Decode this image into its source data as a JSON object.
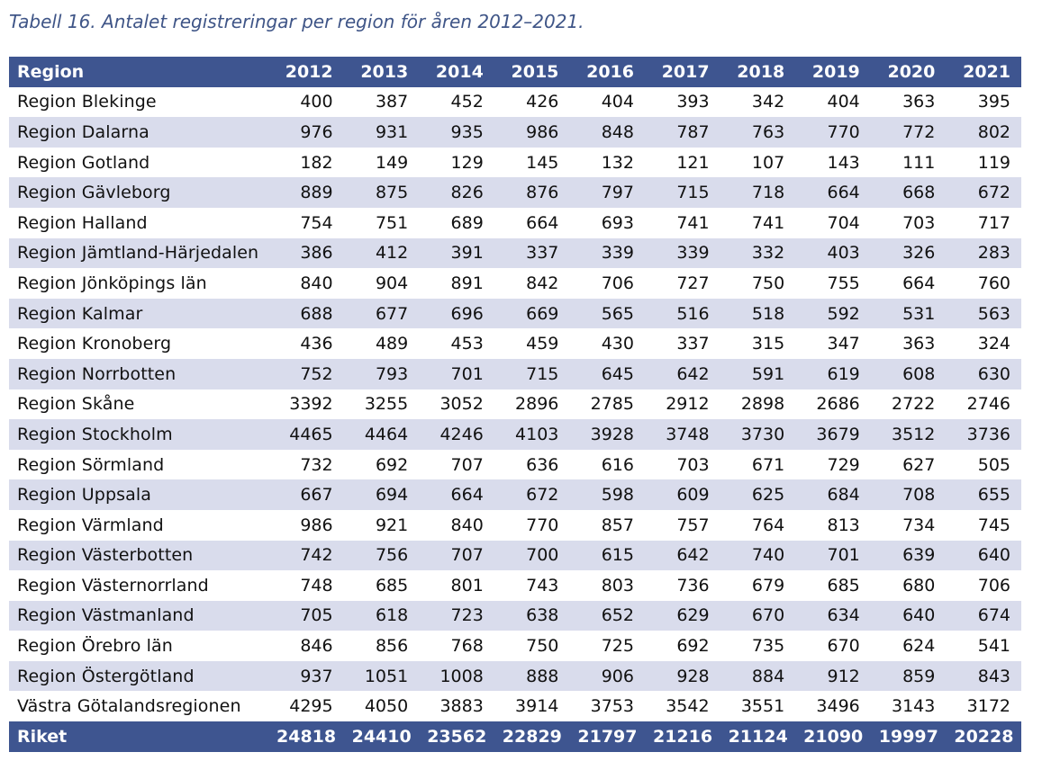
{
  "caption": "Tabell 16. Antalet registreringar per region för åren 2012–2021.",
  "header": {
    "region": "Region",
    "years": [
      "2012",
      "2013",
      "2014",
      "2015",
      "2016",
      "2017",
      "2018",
      "2019",
      "2020",
      "2021"
    ]
  },
  "rows": [
    {
      "region": "Region Blekinge",
      "values": [
        "400",
        "387",
        "452",
        "426",
        "404",
        "393",
        "342",
        "404",
        "363",
        "395"
      ]
    },
    {
      "region": "Region Dalarna",
      "values": [
        "976",
        "931",
        "935",
        "986",
        "848",
        "787",
        "763",
        "770",
        "772",
        "802"
      ]
    },
    {
      "region": "Region Gotland",
      "values": [
        "182",
        "149",
        "129",
        "145",
        "132",
        "121",
        "107",
        "143",
        "111",
        "119"
      ]
    },
    {
      "region": "Region Gävleborg",
      "values": [
        "889",
        "875",
        "826",
        "876",
        "797",
        "715",
        "718",
        "664",
        "668",
        "672"
      ]
    },
    {
      "region": "Region Halland",
      "values": [
        "754",
        "751",
        "689",
        "664",
        "693",
        "741",
        "741",
        "704",
        "703",
        "717"
      ]
    },
    {
      "region": "Region Jämtland-Härjedalen",
      "values": [
        "386",
        "412",
        "391",
        "337",
        "339",
        "339",
        "332",
        "403",
        "326",
        "283"
      ]
    },
    {
      "region": "Region Jönköpings län",
      "values": [
        "840",
        "904",
        "891",
        "842",
        "706",
        "727",
        "750",
        "755",
        "664",
        "760"
      ]
    },
    {
      "region": "Region Kalmar",
      "values": [
        "688",
        "677",
        "696",
        "669",
        "565",
        "516",
        "518",
        "592",
        "531",
        "563"
      ]
    },
    {
      "region": "Region Kronoberg",
      "values": [
        "436",
        "489",
        "453",
        "459",
        "430",
        "337",
        "315",
        "347",
        "363",
        "324"
      ]
    },
    {
      "region": "Region Norrbotten",
      "values": [
        "752",
        "793",
        "701",
        "715",
        "645",
        "642",
        "591",
        "619",
        "608",
        "630"
      ]
    },
    {
      "region": "Region Skåne",
      "values": [
        "3392",
        "3255",
        "3052",
        "2896",
        "2785",
        "2912",
        "2898",
        "2686",
        "2722",
        "2746"
      ]
    },
    {
      "region": "Region Stockholm",
      "values": [
        "4465",
        "4464",
        "4246",
        "4103",
        "3928",
        "3748",
        "3730",
        "3679",
        "3512",
        "3736"
      ]
    },
    {
      "region": "Region Sörmland",
      "values": [
        "732",
        "692",
        "707",
        "636",
        "616",
        "703",
        "671",
        "729",
        "627",
        "505"
      ]
    },
    {
      "region": "Region Uppsala",
      "values": [
        "667",
        "694",
        "664",
        "672",
        "598",
        "609",
        "625",
        "684",
        "708",
        "655"
      ]
    },
    {
      "region": "Region Värmland",
      "values": [
        "986",
        "921",
        "840",
        "770",
        "857",
        "757",
        "764",
        "813",
        "734",
        "745"
      ]
    },
    {
      "region": "Region Västerbotten",
      "values": [
        "742",
        "756",
        "707",
        "700",
        "615",
        "642",
        "740",
        "701",
        "639",
        "640"
      ]
    },
    {
      "region": "Region Västernorrland",
      "values": [
        "748",
        "685",
        "801",
        "743",
        "803",
        "736",
        "679",
        "685",
        "680",
        "706"
      ]
    },
    {
      "region": "Region Västmanland",
      "values": [
        "705",
        "618",
        "723",
        "638",
        "652",
        "629",
        "670",
        "634",
        "640",
        "674"
      ]
    },
    {
      "region": "Region Örebro län",
      "values": [
        "846",
        "856",
        "768",
        "750",
        "725",
        "692",
        "735",
        "670",
        "624",
        "541"
      ]
    },
    {
      "region": "Region Östergötland",
      "values": [
        "937",
        "1051",
        "1008",
        "888",
        "906",
        "928",
        "884",
        "912",
        "859",
        "843"
      ]
    },
    {
      "region": "Västra Götalandsregionen",
      "values": [
        "4295",
        "4050",
        "3883",
        "3914",
        "3753",
        "3542",
        "3551",
        "3496",
        "3143",
        "3172"
      ]
    }
  ],
  "total": {
    "region": "Riket",
    "values": [
      "24818",
      "24410",
      "23562",
      "22829",
      "21797",
      "21216",
      "21124",
      "21090",
      "19997",
      "20228"
    ]
  },
  "colors": {
    "header_bg": "#3e5590",
    "stripe_bg": "#d9dcec",
    "caption_color": "#3f5587"
  }
}
